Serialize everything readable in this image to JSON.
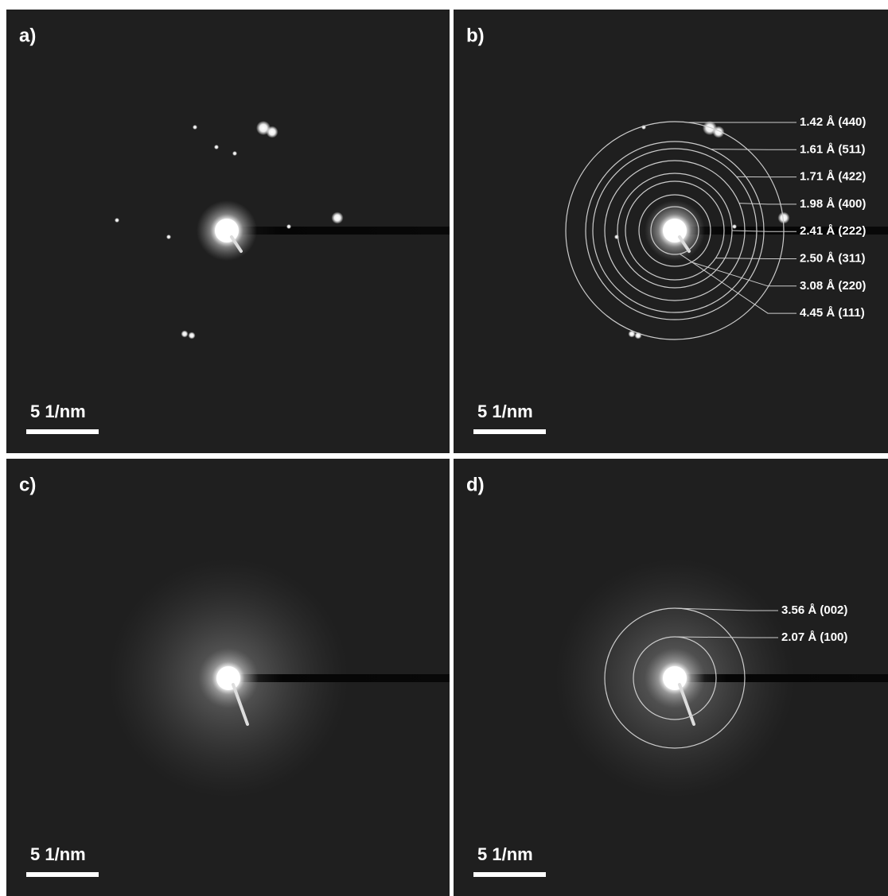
{
  "panels": [
    {
      "label": "a)",
      "scale": "5 1/nm",
      "rings": []
    },
    {
      "label": "b)",
      "scale": "5 1/nm",
      "rings": [
        {
          "label": "1.42 Å (440)"
        },
        {
          "label": "1.61 Å (511)"
        },
        {
          "label": "1.71 Å (422)"
        },
        {
          "label": "1.98 Å (400)"
        },
        {
          "label": "2.41 Å (222)"
        },
        {
          "label": "2.50 Å (311)"
        },
        {
          "label": "3.08 Å (220)"
        },
        {
          "label": "4.45 Å (111)"
        }
      ]
    },
    {
      "label": "c)",
      "scale": "5 1/nm",
      "rings": []
    },
    {
      "label": "d)",
      "scale": "5 1/nm",
      "rings": [
        {
          "label": "3.56 Å (002)"
        },
        {
          "label": "2.07 Å (100)"
        }
      ]
    }
  ]
}
